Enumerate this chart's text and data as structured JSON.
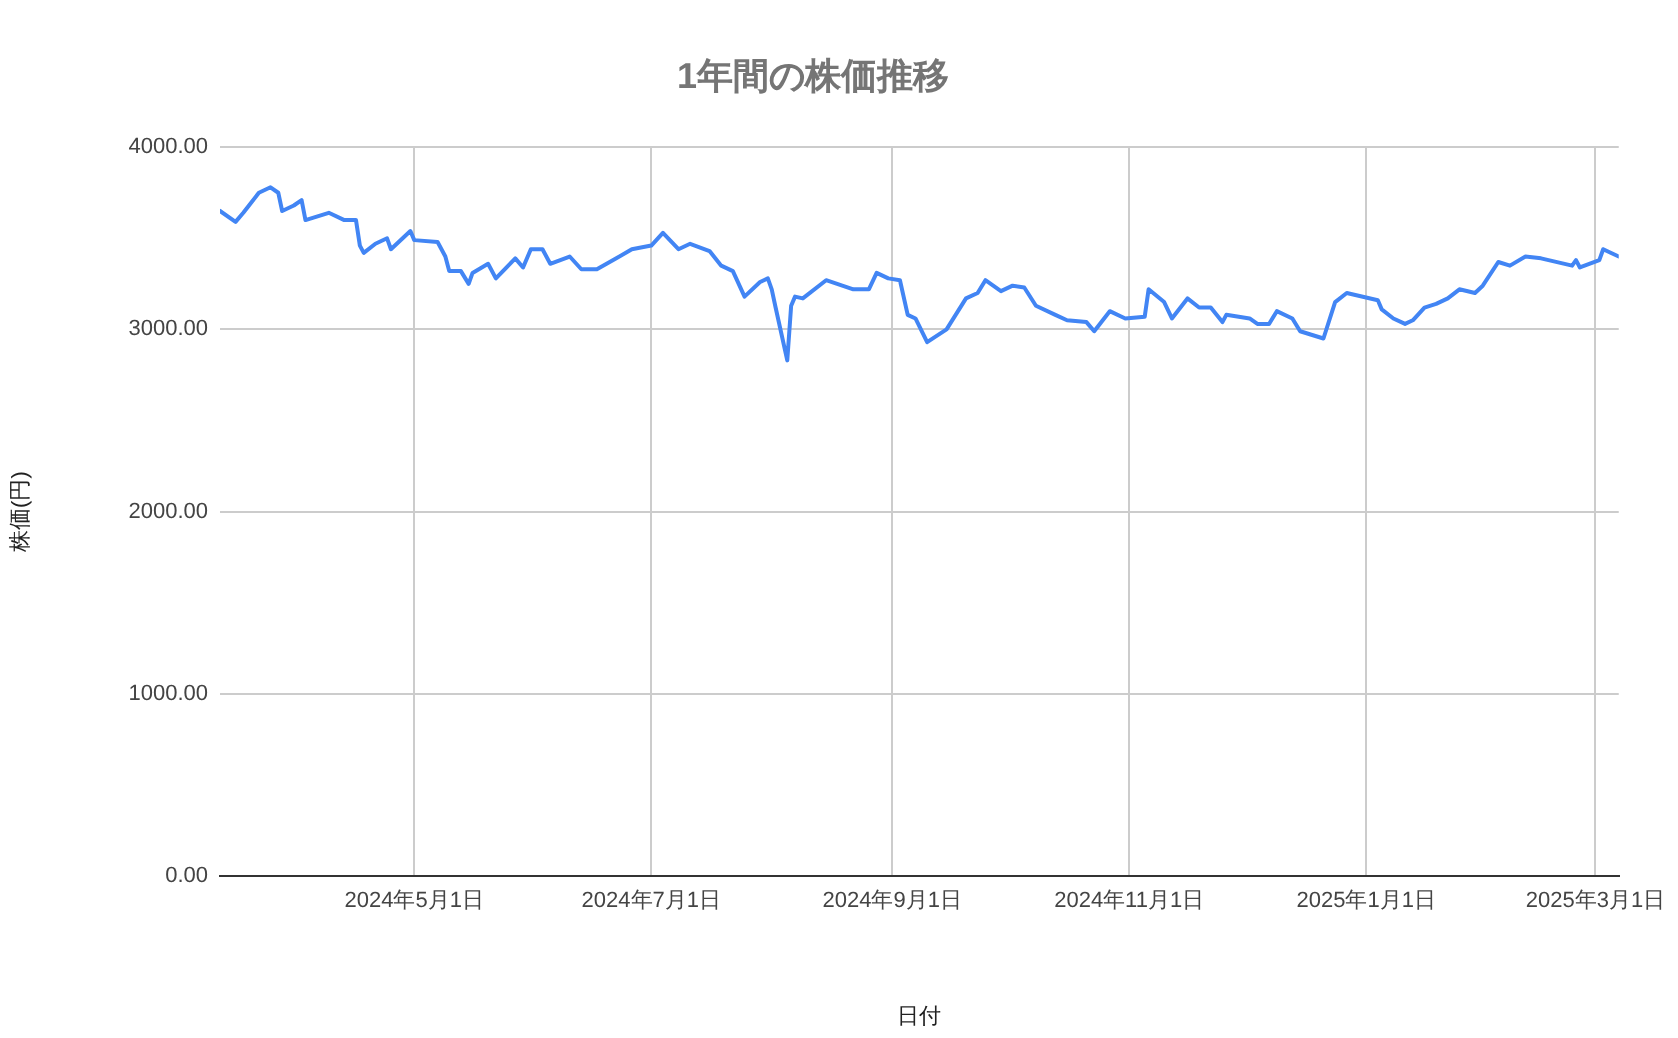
{
  "chart_data": {
    "type": "line",
    "title": "1年間の株価推移",
    "xlabel": "日付",
    "ylabel": "株価(円)",
    "x": [
      "2024-03-12",
      "2024-03-16",
      "2024-03-18",
      "2024-03-22",
      "2024-03-25",
      "2024-03-27",
      "2024-03-28",
      "2024-03-31",
      "2024-04-02",
      "2024-04-03",
      "2024-04-09",
      "2024-04-13",
      "2024-04-16",
      "2024-04-17",
      "2024-04-18",
      "2024-04-21",
      "2024-04-24",
      "2024-04-25",
      "2024-04-30",
      "2024-05-01",
      "2024-05-07",
      "2024-05-09",
      "2024-05-10",
      "2024-05-13",
      "2024-05-15",
      "2024-05-16",
      "2024-05-20",
      "2024-05-22",
      "2024-05-27",
      "2024-05-29",
      "2024-05-31",
      "2024-06-03",
      "2024-06-05",
      "2024-06-10",
      "2024-06-13",
      "2024-06-17",
      "2024-06-22",
      "2024-06-26",
      "2024-07-01",
      "2024-07-04",
      "2024-07-08",
      "2024-07-11",
      "2024-07-16",
      "2024-07-19",
      "2024-07-22",
      "2024-07-25",
      "2024-07-29",
      "2024-07-31",
      "2024-08-01",
      "2024-08-02",
      "2024-08-05",
      "2024-08-06",
      "2024-08-07",
      "2024-08-09",
      "2024-08-15",
      "2024-08-22",
      "2024-08-26",
      "2024-08-28",
      "2024-08-31",
      "2024-09-03",
      "2024-09-05",
      "2024-09-07",
      "2024-09-10",
      "2024-09-15",
      "2024-09-20",
      "2024-09-23",
      "2024-09-25",
      "2024-09-29",
      "2024-10-02",
      "2024-10-05",
      "2024-10-08",
      "2024-10-13",
      "2024-10-16",
      "2024-10-21",
      "2024-10-23",
      "2024-10-27",
      "2024-10-31",
      "2024-11-05",
      "2024-11-06",
      "2024-11-10",
      "2024-11-12",
      "2024-11-16",
      "2024-11-19",
      "2024-11-22",
      "2024-11-25",
      "2024-11-26",
      "2024-12-02",
      "2024-12-04",
      "2024-12-07",
      "2024-12-09",
      "2024-12-13",
      "2024-12-15",
      "2024-12-21",
      "2024-12-24",
      "2024-12-27",
      "2025-01-04",
      "2025-01-05",
      "2025-01-08",
      "2025-01-11",
      "2025-01-13",
      "2025-01-16",
      "2025-01-19",
      "2025-01-22",
      "2025-01-25",
      "2025-01-29",
      "2025-01-31",
      "2025-02-04",
      "2025-02-07",
      "2025-02-11",
      "2025-02-15",
      "2025-02-23",
      "2025-02-24",
      "2025-02-25",
      "2025-03-02",
      "2025-03-03",
      "2025-03-07"
    ],
    "series": [
      {
        "color": "#4285f4",
        "values": [
          3650,
          3590,
          3640,
          3750,
          3780,
          3750,
          3650,
          3680,
          3710,
          3600,
          3640,
          3600,
          3600,
          3460,
          3420,
          3470,
          3500,
          3440,
          3540,
          3490,
          3480,
          3400,
          3320,
          3320,
          3250,
          3310,
          3360,
          3280,
          3390,
          3340,
          3440,
          3440,
          3360,
          3400,
          3330,
          3330,
          3390,
          3440,
          3460,
          3530,
          3440,
          3470,
          3430,
          3350,
          3320,
          3180,
          3260,
          3280,
          3220,
          3120,
          2830,
          3130,
          3180,
          3170,
          3270,
          3220,
          3220,
          3310,
          3280,
          3270,
          3080,
          3060,
          2930,
          3000,
          3170,
          3200,
          3270,
          3210,
          3240,
          3230,
          3130,
          3080,
          3050,
          3040,
          2990,
          3100,
          3060,
          3070,
          3220,
          3150,
          3060,
          3170,
          3120,
          3120,
          3040,
          3080,
          3060,
          3030,
          3030,
          3100,
          3060,
          2990,
          2950,
          3150,
          3200,
          3160,
          3110,
          3060,
          3030,
          3050,
          3120,
          3140,
          3170,
          3220,
          3200,
          3240,
          3370,
          3350,
          3400,
          3390,
          3350,
          3380,
          3340,
          3380,
          3440,
          3400
        ]
      }
    ],
    "xlim": [
      "2024-03-12",
      "2025-03-07"
    ],
    "xticks": [
      {
        "value": "2024-05-01",
        "label": "2024年5月1日"
      },
      {
        "value": "2024-07-01",
        "label": "2024年7月1日"
      },
      {
        "value": "2024-09-01",
        "label": "2024年9月1日"
      },
      {
        "value": "2024-11-01",
        "label": "2024年11月1日"
      },
      {
        "value": "2025-01-01",
        "label": "2025年1月1日"
      },
      {
        "value": "2025-03-01",
        "label": "2025年3月1日"
      }
    ],
    "ylim": [
      0,
      4000
    ],
    "yticks": [
      {
        "value": 0,
        "label": "0.00"
      },
      {
        "value": 1000,
        "label": "1000.00"
      },
      {
        "value": 2000,
        "label": "2000.00"
      },
      {
        "value": 3000,
        "label": "3000.00"
      },
      {
        "value": 4000,
        "label": "4000.00"
      }
    ],
    "grid": true,
    "marker": "none",
    "line_style": "solid"
  }
}
